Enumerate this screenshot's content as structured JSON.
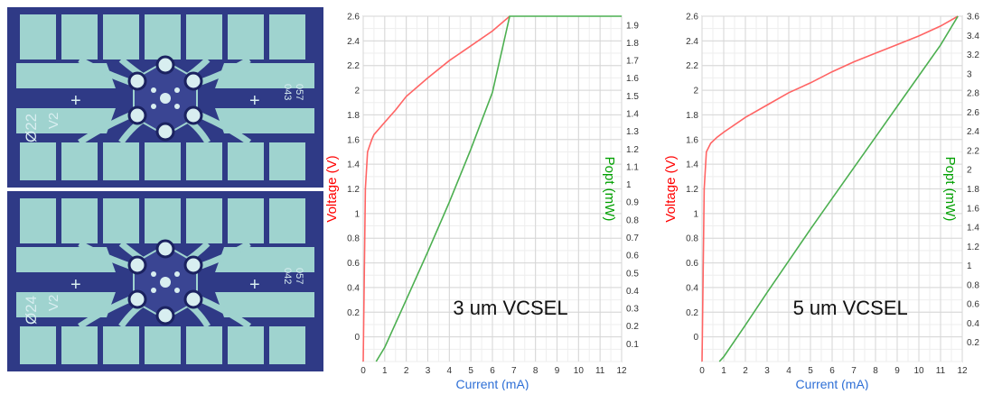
{
  "photo": {
    "chip_top": {
      "label_diameter": "Ø22",
      "label_version": "V2",
      "label_plus": "+",
      "code_a": "057",
      "code_b": "043"
    },
    "chip_bottom": {
      "label_diameter": "Ø24",
      "label_version": "V2",
      "label_plus": "+",
      "code_a": "057",
      "code_b": "042"
    }
  },
  "chart_data": [
    {
      "type": "line",
      "annotation": "3 um VCSEL",
      "xlabel": "Current (mA)",
      "ylabel": "Voltage (V)",
      "y2label": "Popt (mW)",
      "xlim": [
        0,
        12
      ],
      "ylim": [
        -0.2,
        2.6
      ],
      "y2lim": [
        0,
        1.95
      ],
      "xticks": [
        "0",
        "1",
        "2",
        "3",
        "4",
        "5",
        "6",
        "7",
        "8",
        "9",
        "10",
        "11",
        "12"
      ],
      "yticks": [
        "0",
        "0.2",
        "0.4",
        "0.6",
        "0.8",
        "1",
        "1.2",
        "1.4",
        "1.6",
        "1.8",
        "2",
        "2.2",
        "2.4",
        "2.6"
      ],
      "y2ticks": [
        "0.1",
        "0.2",
        "0.3",
        "0.4",
        "0.5",
        "0.6",
        "0.7",
        "0.8",
        "0.9",
        "1",
        "1.1",
        "1.2",
        "1.3",
        "1.4",
        "1.5",
        "1.6",
        "1.7",
        "1.8",
        "1.9"
      ],
      "grid": true,
      "series": [
        {
          "color": "#ff6464",
          "axis": "left",
          "x": [
            0,
            0.05,
            0.1,
            0.2,
            0.3,
            0.4,
            0.5,
            1,
            1.5,
            2,
            3,
            4,
            5,
            6,
            6.8
          ],
          "y": [
            -0.2,
            0.5,
            1.2,
            1.5,
            1.55,
            1.6,
            1.64,
            1.74,
            1.84,
            1.95,
            2.1,
            2.24,
            2.36,
            2.48,
            2.6
          ]
        },
        {
          "color": "#4caf50",
          "axis": "right",
          "x": [
            0.6,
            1,
            2,
            3,
            4,
            5,
            6,
            6.8,
            12
          ],
          "y": [
            0,
            0.08,
            0.35,
            0.62,
            0.9,
            1.2,
            1.52,
            1.95,
            1.95
          ]
        }
      ]
    },
    {
      "type": "line",
      "annotation": "5 um VCSEL",
      "xlabel": "Current (mA)",
      "ylabel": "Voltage (V)",
      "y2label": "Popt (mW)",
      "xlim": [
        0,
        12
      ],
      "ylim": [
        -0.2,
        2.6
      ],
      "y2lim": [
        0,
        3.6
      ],
      "xticks": [
        "0",
        "1",
        "2",
        "3",
        "4",
        "5",
        "6",
        "7",
        "8",
        "9",
        "10",
        "11",
        "12"
      ],
      "yticks": [
        "0",
        "0.2",
        "0.4",
        "0.6",
        "0.8",
        "1",
        "1.2",
        "1.4",
        "1.6",
        "1.8",
        "2",
        "2.2",
        "2.4",
        "2.6"
      ],
      "y2ticks": [
        "0.2",
        "0.4",
        "0.6",
        "0.8",
        "1",
        "1.2",
        "1.4",
        "1.6",
        "1.8",
        "2",
        "2.2",
        "2.4",
        "2.6",
        "2.8",
        "3",
        "3.2",
        "3.4",
        "3.6"
      ],
      "grid": true,
      "series": [
        {
          "color": "#ff6464",
          "axis": "left",
          "x": [
            0,
            0.05,
            0.1,
            0.2,
            0.4,
            0.7,
            1,
            2,
            3,
            4,
            5,
            6,
            7,
            8,
            9,
            10,
            11,
            11.8
          ],
          "y": [
            -0.2,
            0.5,
            1.2,
            1.5,
            1.57,
            1.62,
            1.66,
            1.78,
            1.88,
            1.98,
            2.06,
            2.15,
            2.23,
            2.3,
            2.37,
            2.44,
            2.52,
            2.6
          ]
        },
        {
          "color": "#4caf50",
          "axis": "right",
          "x": [
            0.8,
            1,
            2,
            3,
            4,
            5,
            6,
            7,
            8,
            9,
            10,
            11,
            11.8
          ],
          "y": [
            0,
            0.05,
            0.38,
            0.72,
            1.05,
            1.38,
            1.7,
            2.02,
            2.34,
            2.66,
            2.98,
            3.3,
            3.6
          ]
        }
      ]
    }
  ]
}
